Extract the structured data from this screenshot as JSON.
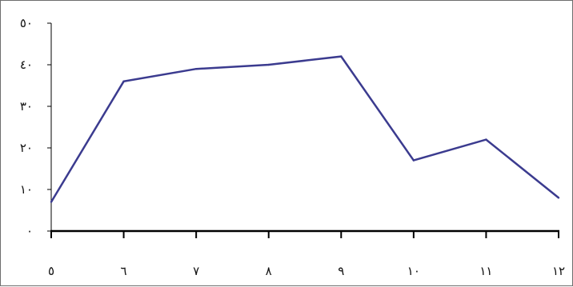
{
  "chart_data": {
    "type": "line",
    "title": "",
    "xlabel": "",
    "ylabel": "",
    "categories": [
      "٥",
      "٦",
      "٧",
      "٨",
      "٩",
      "١٠",
      "١١",
      "١٢"
    ],
    "series": [
      {
        "values": [
          7,
          36,
          39,
          40,
          42,
          17,
          22,
          8
        ],
        "color": "#3b3b8f"
      }
    ],
    "ylim": [
      0,
      50
    ],
    "yticks": [
      0,
      10,
      20,
      30,
      40,
      50
    ],
    "ytick_labels": [
      "٠",
      "١٠",
      "٢٠",
      "٣٠",
      "٤٠",
      "٥٠"
    ],
    "grid": false,
    "legend": "none",
    "axis_color": "#000000"
  }
}
